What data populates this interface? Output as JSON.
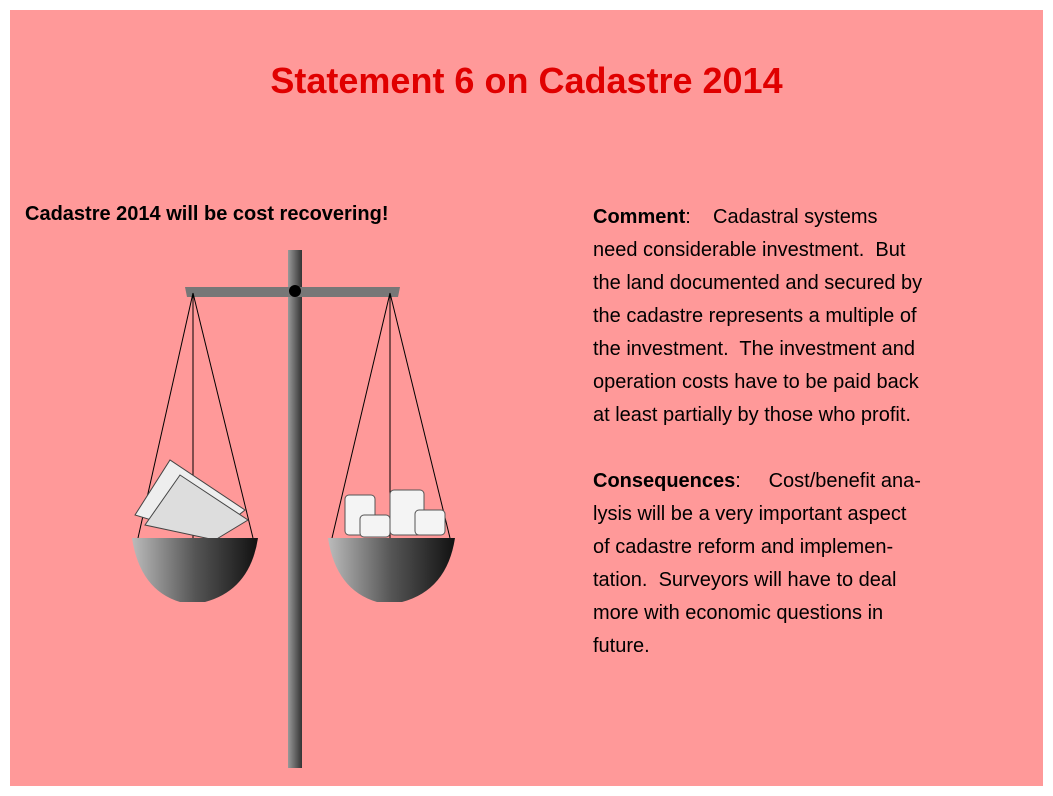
{
  "slide": {
    "title": "Statement 6 on Cadastre 2014",
    "heading": "Cadastre 2014 will be cost recovering!",
    "comment": {
      "label": "Comment",
      "lines": [
        ":    Cadastral systems",
        "need considerable investment.  But",
        "the land documented and secured by",
        "the cadastre represents a multiple of",
        "the investment.  The investment and",
        "operation costs have to be paid back",
        "at least partially by those who profit."
      ]
    },
    "consequences": {
      "label": "Consequences",
      "lines": [
        ":     Cost/benefit ana-",
        "lysis will be a very important aspect",
        "of cadastre reform and implemen-",
        "tation.  Surveyors will have to deal",
        "more with economic questions in",
        "future."
      ]
    }
  }
}
